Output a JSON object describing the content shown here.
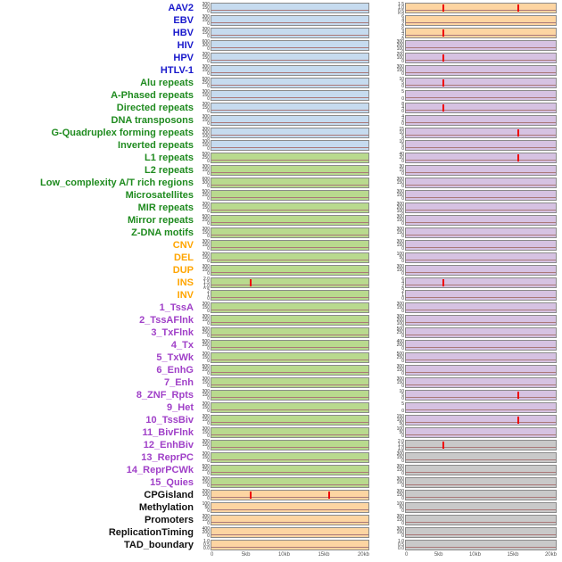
{
  "figure": {
    "panel_colors": {
      "blue": "#c6dbef",
      "green": "#b9da8e",
      "peach": "#fdd5a2",
      "purple": "#d6c2e2",
      "gray": "#c9c9c9"
    },
    "group_label_colors": {
      "virus": "#1a1acc",
      "repeat": "#1f8b1f",
      "sv": "#ffa500",
      "chromatin": "#a040c8",
      "other": "#111111"
    },
    "baseline_color": "#aa7878",
    "spike_color": "#ee0000",
    "axis_text_color": "#555555"
  },
  "chart_data": {
    "type": "line",
    "layout": "small-multiples",
    "columns": [
      "left",
      "right"
    ],
    "x_range_kb": [
      0,
      20
    ],
    "x_ticks": [
      "0",
      "5kb",
      "10kb",
      "15kb",
      "20kb"
    ],
    "grid": false,
    "legend": false,
    "rows": [
      {
        "label": "AAV2",
        "group": "virus",
        "left": {
          "bg": "blue",
          "yticks": [
            "300",
            "150",
            "0"
          ],
          "spikes_kb": []
        },
        "right": {
          "bg": "peach",
          "yticks": [
            "1.5",
            "1.0",
            "0.5",
            "0.0"
          ],
          "spikes_kb": [
            5,
            15
          ]
        }
      },
      {
        "label": "EBV",
        "group": "virus",
        "left": {
          "bg": "blue",
          "yticks": [
            "300",
            "150",
            "0"
          ],
          "spikes_kb": []
        },
        "right": {
          "bg": "peach",
          "yticks": [
            "6",
            "4",
            "2",
            "0"
          ],
          "spikes_kb": []
        }
      },
      {
        "label": "HBV",
        "group": "virus",
        "left": {
          "bg": "blue",
          "yticks": [
            "300",
            "150",
            "0"
          ],
          "spikes_kb": []
        },
        "right": {
          "bg": "peach",
          "yticks": [
            "6",
            "4",
            "2",
            "0"
          ],
          "spikes_kb": [
            5
          ]
        }
      },
      {
        "label": "HIV",
        "group": "virus",
        "left": {
          "bg": "blue",
          "yticks": [
            "600",
            "300",
            "0"
          ],
          "spikes_kb": []
        },
        "right": {
          "bg": "purple",
          "yticks": [
            "300",
            "200",
            "100",
            "0"
          ],
          "spikes_kb": []
        }
      },
      {
        "label": "HPV",
        "group": "virus",
        "left": {
          "bg": "blue",
          "yticks": [
            "300",
            "150",
            "0"
          ],
          "spikes_kb": []
        },
        "right": {
          "bg": "purple",
          "yticks": [
            "200",
            "100",
            "0"
          ],
          "spikes_kb": [
            5
          ]
        }
      },
      {
        "label": "HTLV-1",
        "group": "virus",
        "left": {
          "bg": "blue",
          "yticks": [
            "300",
            "150",
            "0"
          ],
          "spikes_kb": []
        },
        "right": {
          "bg": "purple",
          "yticks": [
            "300",
            "150",
            "0"
          ],
          "spikes_kb": []
        }
      },
      {
        "label": "Alu repeats",
        "group": "repeat",
        "left": {
          "bg": "blue",
          "yticks": [
            "500",
            "250",
            "0"
          ],
          "spikes_kb": []
        },
        "right": {
          "bg": "purple",
          "yticks": [
            "10",
            "5",
            "0"
          ],
          "spikes_kb": [
            5
          ]
        }
      },
      {
        "label": "A-Phased repeats",
        "group": "repeat",
        "left": {
          "bg": "blue",
          "yticks": [
            "300",
            "150",
            "0"
          ],
          "spikes_kb": []
        },
        "right": {
          "bg": "purple",
          "yticks": [
            "5",
            "0"
          ],
          "spikes_kb": []
        }
      },
      {
        "label": "Directed repeats",
        "group": "repeat",
        "left": {
          "bg": "blue",
          "yticks": [
            "300",
            "150",
            "0"
          ],
          "spikes_kb": []
        },
        "right": {
          "bg": "purple",
          "yticks": [
            "8",
            "4",
            "0"
          ],
          "spikes_kb": [
            5
          ]
        }
      },
      {
        "label": "DNA transposons",
        "group": "repeat",
        "left": {
          "bg": "blue",
          "yticks": [
            "300",
            "150",
            "0"
          ],
          "spikes_kb": []
        },
        "right": {
          "bg": "purple",
          "yticks": [
            "4",
            "2",
            "0"
          ],
          "spikes_kb": []
        }
      },
      {
        "label": "G-Quadruplex forming repeats",
        "group": "repeat",
        "left": {
          "bg": "blue",
          "yticks": [
            "300",
            "200",
            "100",
            "0"
          ],
          "spikes_kb": []
        },
        "right": {
          "bg": "purple",
          "yticks": [
            "15",
            "10",
            "5",
            "0"
          ],
          "spikes_kb": [
            15
          ]
        }
      },
      {
        "label": "Inverted repeats",
        "group": "repeat",
        "left": {
          "bg": "blue",
          "yticks": [
            "300",
            "150",
            "0"
          ],
          "spikes_kb": []
        },
        "right": {
          "bg": "purple",
          "yticks": [
            "10",
            "5",
            "0"
          ],
          "spikes_kb": []
        }
      },
      {
        "label": "L1 repeats",
        "group": "repeat",
        "left": {
          "bg": "green",
          "yticks": [
            "500",
            "250",
            "0"
          ],
          "spikes_kb": []
        },
        "right": {
          "bg": "purple",
          "yticks": [
            "40",
            "20",
            "0"
          ],
          "spikes_kb": [
            15
          ]
        }
      },
      {
        "label": "L2 repeats",
        "group": "repeat",
        "left": {
          "bg": "green",
          "yticks": [
            "300",
            "150",
            "0"
          ],
          "spikes_kb": []
        },
        "right": {
          "bg": "purple",
          "yticks": [
            "30",
            "15",
            "0"
          ],
          "spikes_kb": []
        }
      },
      {
        "label": "Low_complexity A/T rich regions",
        "group": "repeat",
        "left": {
          "bg": "green",
          "yticks": [
            "600",
            "300",
            "0"
          ],
          "spikes_kb": []
        },
        "right": {
          "bg": "purple",
          "yticks": [
            "300",
            "150",
            "0"
          ],
          "spikes_kb": []
        }
      },
      {
        "label": "Microsatellites",
        "group": "repeat",
        "left": {
          "bg": "green",
          "yticks": [
            "500",
            "250",
            "0"
          ],
          "spikes_kb": []
        },
        "right": {
          "bg": "purple",
          "yticks": [
            "300",
            "150",
            "0"
          ],
          "spikes_kb": []
        }
      },
      {
        "label": "MIR repeats",
        "group": "repeat",
        "left": {
          "bg": "green",
          "yticks": [
            "300",
            "150",
            "0"
          ],
          "spikes_kb": []
        },
        "right": {
          "bg": "purple",
          "yticks": [
            "300",
            "200",
            "100",
            "0"
          ],
          "spikes_kb": []
        }
      },
      {
        "label": "Mirror repeats",
        "group": "repeat",
        "left": {
          "bg": "green",
          "yticks": [
            "500",
            "250",
            "0"
          ],
          "spikes_kb": []
        },
        "right": {
          "bg": "purple",
          "yticks": [
            "300",
            "150",
            "0"
          ],
          "spikes_kb": []
        }
      },
      {
        "label": "Z-DNA motifs",
        "group": "repeat",
        "left": {
          "bg": "green",
          "yticks": [
            "300",
            "150",
            "0"
          ],
          "spikes_kb": []
        },
        "right": {
          "bg": "purple",
          "yticks": [
            "300",
            "150",
            "0"
          ],
          "spikes_kb": []
        }
      },
      {
        "label": "CNV",
        "group": "sv",
        "left": {
          "bg": "green",
          "yticks": [
            "300",
            "150",
            "0"
          ],
          "spikes_kb": []
        },
        "right": {
          "bg": "purple",
          "yticks": [
            "300",
            "150",
            "0"
          ],
          "spikes_kb": []
        }
      },
      {
        "label": "DEL",
        "group": "sv",
        "left": {
          "bg": "green",
          "yticks": [
            "300",
            "150",
            "0"
          ],
          "spikes_kb": []
        },
        "right": {
          "bg": "purple",
          "yticks": [
            "100",
            "50",
            "0"
          ],
          "spikes_kb": []
        }
      },
      {
        "label": "DUP",
        "group": "sv",
        "left": {
          "bg": "green",
          "yticks": [
            "300",
            "150",
            "0"
          ],
          "spikes_kb": []
        },
        "right": {
          "bg": "purple",
          "yticks": [
            "300",
            "150",
            "0"
          ],
          "spikes_kb": []
        }
      },
      {
        "label": "INS",
        "group": "sv",
        "left": {
          "bg": "green",
          "yticks": [
            "2.0",
            "1.5",
            "1.0",
            "0.5",
            "0.0"
          ],
          "spikes_kb": [
            5
          ]
        },
        "right": {
          "bg": "purple",
          "yticks": [
            "6",
            "4",
            "2",
            "0"
          ],
          "spikes_kb": [
            5
          ]
        }
      },
      {
        "label": "INV",
        "group": "sv",
        "left": {
          "bg": "green",
          "yticks": [
            "2",
            "1",
            "0"
          ],
          "spikes_kb": []
        },
        "right": {
          "bg": "purple",
          "yticks": [
            "2",
            "1",
            "0"
          ],
          "spikes_kb": []
        }
      },
      {
        "label": "1_TssA",
        "group": "chromatin",
        "left": {
          "bg": "green",
          "yticks": [
            "300",
            "150",
            "0"
          ],
          "spikes_kb": []
        },
        "right": {
          "bg": "purple",
          "yticks": [
            "300",
            "150",
            "0"
          ],
          "spikes_kb": []
        }
      },
      {
        "label": "2_TssAFlnk",
        "group": "chromatin",
        "left": {
          "bg": "green",
          "yticks": [
            "300",
            "150",
            "0"
          ],
          "spikes_kb": []
        },
        "right": {
          "bg": "purple",
          "yticks": [
            "300",
            "200",
            "100",
            "0"
          ],
          "spikes_kb": []
        }
      },
      {
        "label": "3_TxFlnk",
        "group": "chromatin",
        "left": {
          "bg": "green",
          "yticks": [
            "500",
            "250",
            "0"
          ],
          "spikes_kb": []
        },
        "right": {
          "bg": "purple",
          "yticks": [
            "500",
            "250",
            "0"
          ],
          "spikes_kb": []
        }
      },
      {
        "label": "4_Tx",
        "group": "chromatin",
        "left": {
          "bg": "green",
          "yticks": [
            "500",
            "250",
            "0"
          ],
          "spikes_kb": []
        },
        "right": {
          "bg": "purple",
          "yticks": [
            "400",
            "200",
            "0"
          ],
          "spikes_kb": []
        }
      },
      {
        "label": "5_TxWk",
        "group": "chromatin",
        "left": {
          "bg": "green",
          "yticks": [
            "300",
            "150",
            "0"
          ],
          "spikes_kb": []
        },
        "right": {
          "bg": "purple",
          "yticks": [
            "500",
            "250",
            "0"
          ],
          "spikes_kb": []
        }
      },
      {
        "label": "6_EnhG",
        "group": "chromatin",
        "left": {
          "bg": "green",
          "yticks": [
            "500",
            "250",
            "0"
          ],
          "spikes_kb": []
        },
        "right": {
          "bg": "purple",
          "yticks": [
            "300",
            "150",
            "0"
          ],
          "spikes_kb": []
        }
      },
      {
        "label": "7_Enh",
        "group": "chromatin",
        "left": {
          "bg": "green",
          "yticks": [
            "300",
            "150",
            "0"
          ],
          "spikes_kb": []
        },
        "right": {
          "bg": "purple",
          "yticks": [
            "300",
            "150",
            "0"
          ],
          "spikes_kb": []
        }
      },
      {
        "label": "8_ZNF_Rpts",
        "group": "chromatin",
        "left": {
          "bg": "green",
          "yticks": [
            "300",
            "150",
            "0"
          ],
          "spikes_kb": []
        },
        "right": {
          "bg": "purple",
          "yticks": [
            "10",
            "5",
            "0"
          ],
          "spikes_kb": [
            15
          ]
        }
      },
      {
        "label": "9_Het",
        "group": "chromatin",
        "left": {
          "bg": "green",
          "yticks": [
            "300",
            "150",
            "0"
          ],
          "spikes_kb": []
        },
        "right": {
          "bg": "purple",
          "yticks": [
            "5",
            "0"
          ],
          "spikes_kb": []
        }
      },
      {
        "label": "10_TssBiv",
        "group": "chromatin",
        "left": {
          "bg": "green",
          "yticks": [
            "300",
            "150",
            "0"
          ],
          "spikes_kb": []
        },
        "right": {
          "bg": "purple",
          "yticks": [
            "150",
            "100",
            "50",
            "0"
          ],
          "spikes_kb": [
            15
          ]
        }
      },
      {
        "label": "11_BivFlnk",
        "group": "chromatin",
        "left": {
          "bg": "green",
          "yticks": [
            "300",
            "150",
            "0"
          ],
          "spikes_kb": []
        },
        "right": {
          "bg": "purple",
          "yticks": [
            "100",
            "50",
            "0"
          ],
          "spikes_kb": []
        }
      },
      {
        "label": "12_EnhBiv",
        "group": "chromatin",
        "left": {
          "bg": "green",
          "yticks": [
            "300",
            "150",
            "0"
          ],
          "spikes_kb": []
        },
        "right": {
          "bg": "gray",
          "yticks": [
            "2.0",
            "1.5",
            "1.0",
            "0.5",
            "0.0"
          ],
          "spikes_kb": [
            5
          ]
        }
      },
      {
        "label": "13_ReprPC",
        "group": "chromatin",
        "left": {
          "bg": "green",
          "yticks": [
            "300",
            "150",
            "0"
          ],
          "spikes_kb": []
        },
        "right": {
          "bg": "gray",
          "yticks": [
            "300",
            "150",
            "0"
          ],
          "spikes_kb": []
        }
      },
      {
        "label": "14_ReprPCWk",
        "group": "chromatin",
        "left": {
          "bg": "green",
          "yticks": [
            "500",
            "250",
            "0"
          ],
          "spikes_kb": []
        },
        "right": {
          "bg": "gray",
          "yticks": [
            "300",
            "150",
            "0"
          ],
          "spikes_kb": []
        }
      },
      {
        "label": "15_Quies",
        "group": "chromatin",
        "left": {
          "bg": "green",
          "yticks": [
            "300",
            "150",
            "0"
          ],
          "spikes_kb": []
        },
        "right": {
          "bg": "gray",
          "yticks": [
            "300",
            "150",
            "0"
          ],
          "spikes_kb": []
        }
      },
      {
        "label": "CPGisland",
        "group": "other",
        "left": {
          "bg": "peach",
          "yticks": [
            "200",
            "100",
            "0"
          ],
          "spikes_kb": [
            5,
            15
          ]
        },
        "right": {
          "bg": "gray",
          "yticks": [
            "300",
            "150",
            "0"
          ],
          "spikes_kb": []
        }
      },
      {
        "label": "Methylation",
        "group": "other",
        "left": {
          "bg": "peach",
          "yticks": [
            "100",
            "50",
            "0"
          ],
          "spikes_kb": []
        },
        "right": {
          "bg": "gray",
          "yticks": [
            "100",
            "50",
            "0"
          ],
          "spikes_kb": []
        }
      },
      {
        "label": "Promoters",
        "group": "other",
        "left": {
          "bg": "peach",
          "yticks": [
            "300",
            "150",
            "0"
          ],
          "spikes_kb": []
        },
        "right": {
          "bg": "gray",
          "yticks": [
            "300",
            "150",
            "0"
          ],
          "spikes_kb": []
        }
      },
      {
        "label": "ReplicationTiming",
        "group": "other",
        "left": {
          "bg": "peach",
          "yticks": [
            "400",
            "200",
            "0"
          ],
          "spikes_kb": []
        },
        "right": {
          "bg": "gray",
          "yticks": [
            "300",
            "150",
            "0"
          ],
          "spikes_kb": []
        }
      },
      {
        "label": "TAD_boundary",
        "group": "other",
        "left": {
          "bg": "peach",
          "yticks": [
            "1.0",
            "0.5",
            "0.0"
          ],
          "spikes_kb": []
        },
        "right": {
          "bg": "gray",
          "yticks": [
            "1.0",
            "0.5",
            "0.0"
          ],
          "spikes_kb": []
        }
      }
    ]
  }
}
